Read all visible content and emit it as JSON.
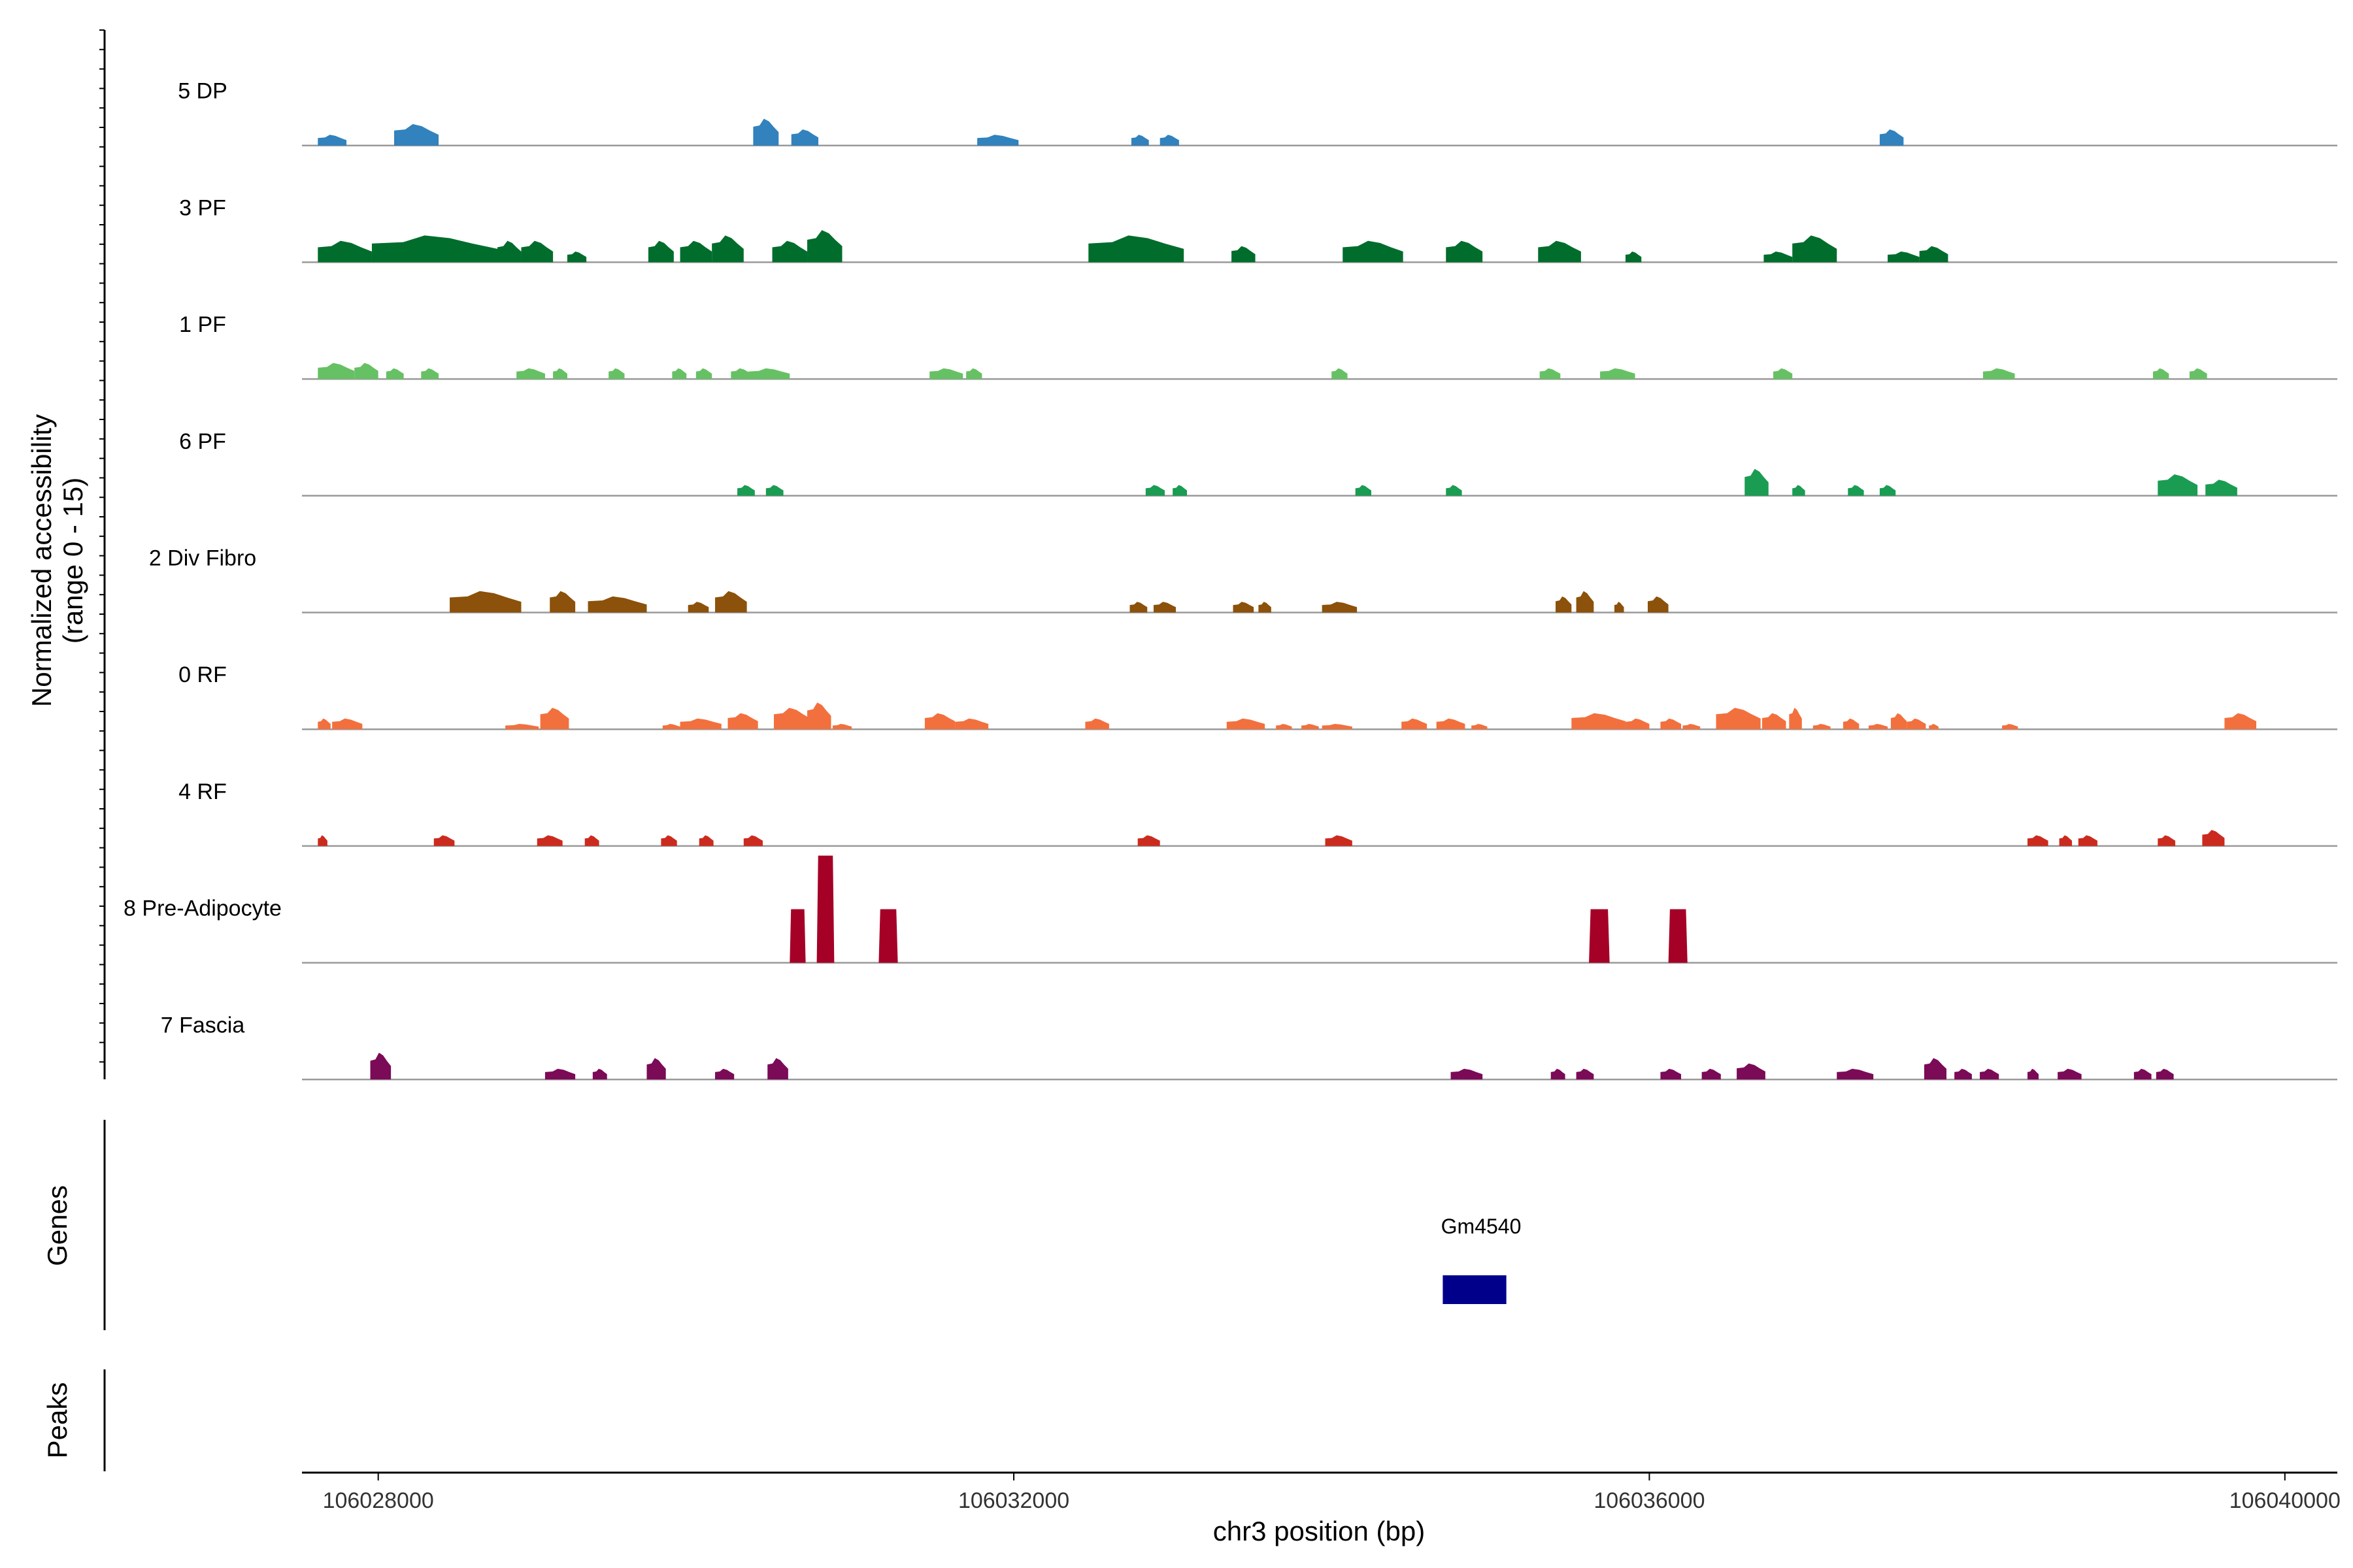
{
  "chart_data": {
    "type": "area",
    "title": "",
    "xlabel": "chr3 position (bp)",
    "ylabel_line1": "Normalized accessibility",
    "ylabel_line2": "(range 0 - 15)",
    "genes_label": "Genes",
    "peaks_label": "Peaks",
    "xlim": [
      106027520,
      106040330
    ],
    "ylim": [
      0,
      15
    ],
    "x_ticks": [
      106028000,
      106032000,
      106036000,
      106040000
    ],
    "x_tick_labels": [
      "106028000",
      "106032000",
      "106036000",
      "106040000"
    ],
    "tracks": [
      {
        "name": "5 DP",
        "color": "#3182bd",
        "peaks": [
          [
            106027620,
            106027800,
            2
          ],
          [
            106028100,
            106028380,
            4
          ],
          [
            106030360,
            106030520,
            5
          ],
          [
            106030600,
            106030770,
            3
          ],
          [
            106031770,
            106032030,
            2
          ],
          [
            106032740,
            106032850,
            2
          ],
          [
            106032920,
            106033040,
            2
          ],
          [
            106037450,
            106037600,
            3
          ]
        ]
      },
      {
        "name": "3 PF",
        "color": "#006d2c",
        "peaks": [
          [
            106027620,
            106027960,
            4
          ],
          [
            106027960,
            106028750,
            5
          ],
          [
            106028750,
            106028900,
            4
          ],
          [
            106028900,
            106029100,
            4
          ],
          [
            106029190,
            106029310,
            2
          ],
          [
            106029700,
            106029860,
            4
          ],
          [
            106029900,
            106030100,
            4
          ],
          [
            106030100,
            106030300,
            5
          ],
          [
            106030480,
            106030700,
            4
          ],
          [
            106030700,
            106030920,
            6
          ],
          [
            106032470,
            106033070,
            5
          ],
          [
            106033370,
            106033520,
            3
          ],
          [
            106034070,
            106034450,
            4
          ],
          [
            106034720,
            106034950,
            4
          ],
          [
            106035300,
            106035570,
            4
          ],
          [
            106035850,
            106035950,
            2
          ],
          [
            106036720,
            106036900,
            2
          ],
          [
            106036900,
            106037180,
            5
          ],
          [
            106037500,
            106037700,
            2
          ],
          [
            106037700,
            106037880,
            3
          ]
        ]
      },
      {
        "name": "1 PF",
        "color": "#66c164",
        "peaks": [
          [
            106027620,
            106027850,
            3
          ],
          [
            106027850,
            106028000,
            3
          ],
          [
            106028050,
            106028160,
            2
          ],
          [
            106028270,
            106028380,
            2
          ],
          [
            106028870,
            106029050,
            2
          ],
          [
            106029100,
            106029190,
            2
          ],
          [
            106029450,
            106029550,
            2
          ],
          [
            106029850,
            106029940,
            2
          ],
          [
            106030000,
            106030100,
            2
          ],
          [
            106030220,
            106030350,
            2
          ],
          [
            106030330,
            106030590,
            2
          ],
          [
            106031470,
            106031680,
            2
          ],
          [
            106031700,
            106031800,
            2
          ],
          [
            106034000,
            106034100,
            2
          ],
          [
            106035310,
            106035440,
            2
          ],
          [
            106035690,
            106035910,
            2
          ],
          [
            106036780,
            106036900,
            2
          ],
          [
            106038100,
            106038300,
            2
          ],
          [
            106039170,
            106039270,
            2
          ],
          [
            106039400,
            106039510,
            2
          ]
        ]
      },
      {
        "name": "6 PF",
        "color": "#1a9c53",
        "peaks": [
          [
            106030260,
            106030370,
            2
          ],
          [
            106030440,
            106030550,
            2
          ],
          [
            106032830,
            106032950,
            2
          ],
          [
            106033000,
            106033090,
            2
          ],
          [
            106034150,
            106034250,
            2
          ],
          [
            106034720,
            106034820,
            2
          ],
          [
            106036600,
            106036750,
            5
          ],
          [
            106036900,
            106036980,
            2
          ],
          [
            106037250,
            106037350,
            2
          ],
          [
            106037450,
            106037550,
            2
          ],
          [
            106039200,
            106039450,
            4
          ],
          [
            106039500,
            106039700,
            3
          ]
        ]
      },
      {
        "name": "2 Div Fibro",
        "color": "#8c510a",
        "peaks": [
          [
            106028450,
            106028900,
            4
          ],
          [
            106029080,
            106029240,
            4
          ],
          [
            106029320,
            106029690,
            3
          ],
          [
            106029950,
            106030080,
            2
          ],
          [
            106030120,
            106030320,
            4
          ],
          [
            106032730,
            106032840,
            2
          ],
          [
            106032880,
            106033020,
            2
          ],
          [
            106033380,
            106033510,
            2
          ],
          [
            106033540,
            106033620,
            2
          ],
          [
            106033940,
            106034160,
            2
          ],
          [
            106035410,
            106035510,
            3
          ],
          [
            106035540,
            106035650,
            4
          ],
          [
            106035780,
            106035840,
            2
          ],
          [
            106035990,
            106036120,
            3
          ]
        ]
      },
      {
        "name": "0 RF",
        "color": "#f2703d",
        "peaks": [
          [
            106027620,
            106027700,
            2
          ],
          [
            106027710,
            106027900,
            2
          ],
          [
            106028800,
            106029010,
            1
          ],
          [
            106029020,
            106029200,
            4
          ],
          [
            106029790,
            106029900,
            1
          ],
          [
            106029900,
            106030160,
            2
          ],
          [
            106030200,
            106030390,
            3
          ],
          [
            106030490,
            106030720,
            4
          ],
          [
            106030700,
            106030850,
            5
          ],
          [
            106030860,
            106030980,
            1
          ],
          [
            106031440,
            106031630,
            3
          ],
          [
            106031630,
            106031840,
            2
          ],
          [
            106032450,
            106032600,
            2
          ],
          [
            106033340,
            106033580,
            2
          ],
          [
            106033650,
            106033750,
            1
          ],
          [
            106033810,
            106033920,
            1
          ],
          [
            106033940,
            106034130,
            1
          ],
          [
            106034440,
            106034600,
            2
          ],
          [
            106034660,
            106034840,
            2
          ],
          [
            106034880,
            106034980,
            1
          ],
          [
            106035510,
            106035850,
            3
          ],
          [
            106035850,
            106036000,
            2
          ],
          [
            106036070,
            106036200,
            2
          ],
          [
            106036210,
            106036320,
            1
          ],
          [
            106036420,
            106036700,
            4
          ],
          [
            106036710,
            106036860,
            3
          ],
          [
            106036880,
            106036960,
            4
          ],
          [
            106037030,
            106037140,
            1
          ],
          [
            106037220,
            106037320,
            2
          ],
          [
            106037380,
            106037500,
            1
          ],
          [
            106037520,
            106037620,
            3
          ],
          [
            106037620,
            106037740,
            2
          ],
          [
            106037760,
            106037820,
            1
          ],
          [
            106038220,
            106038320,
            1
          ],
          [
            106039620,
            106039820,
            3
          ]
        ]
      },
      {
        "name": "4 RF",
        "color": "#cb2b1e",
        "peaks": [
          [
            106027620,
            106027680,
            2
          ],
          [
            106028350,
            106028480,
            2
          ],
          [
            106029000,
            106029160,
            2
          ],
          [
            106029300,
            106029390,
            2
          ],
          [
            106029780,
            106029880,
            2
          ],
          [
            106030020,
            106030110,
            2
          ],
          [
            106030300,
            106030420,
            2
          ],
          [
            106032780,
            106032920,
            2
          ],
          [
            106033960,
            106034130,
            2
          ],
          [
            106038380,
            106038510,
            2
          ],
          [
            106038580,
            106038660,
            2
          ],
          [
            106038700,
            106038820,
            2
          ],
          [
            106039200,
            106039310,
            2
          ],
          [
            106039480,
            106039620,
            3
          ]
        ]
      },
      {
        "name": "8 Pre-Adipocyte",
        "color": "#a50026",
        "peaks": [
          [
            106030590,
            106030690,
            10
          ],
          [
            106030760,
            106030870,
            20
          ],
          [
            106031150,
            106031270,
            10
          ],
          [
            106035620,
            106035750,
            10
          ],
          [
            106036120,
            106036240,
            10
          ]
        ]
      },
      {
        "name": "7 Fascia",
        "color": "#7b0a57",
        "peaks": [
          [
            106027950,
            106028080,
            5
          ],
          [
            106029050,
            106029240,
            2
          ],
          [
            106029350,
            106029440,
            2
          ],
          [
            106029690,
            106029810,
            4
          ],
          [
            106030120,
            106030240,
            2
          ],
          [
            106030450,
            106030580,
            4
          ],
          [
            106034750,
            106034950,
            2
          ],
          [
            106035380,
            106035470,
            2
          ],
          [
            106035540,
            106035650,
            2
          ],
          [
            106036070,
            106036200,
            2
          ],
          [
            106036330,
            106036450,
            2
          ],
          [
            106036550,
            106036730,
            3
          ],
          [
            106037180,
            106037410,
            2
          ],
          [
            106037730,
            106037870,
            4
          ],
          [
            106037920,
            106038030,
            2
          ],
          [
            106038080,
            106038200,
            2
          ],
          [
            106038380,
            106038450,
            2
          ],
          [
            106038570,
            106038720,
            2
          ],
          [
            106039050,
            106039160,
            2
          ],
          [
            106039190,
            106039300,
            2
          ]
        ]
      }
    ],
    "genes": [
      {
        "name": "Gm4540",
        "start": 106034700,
        "end": 106035100,
        "color": "#00008b"
      }
    ]
  }
}
